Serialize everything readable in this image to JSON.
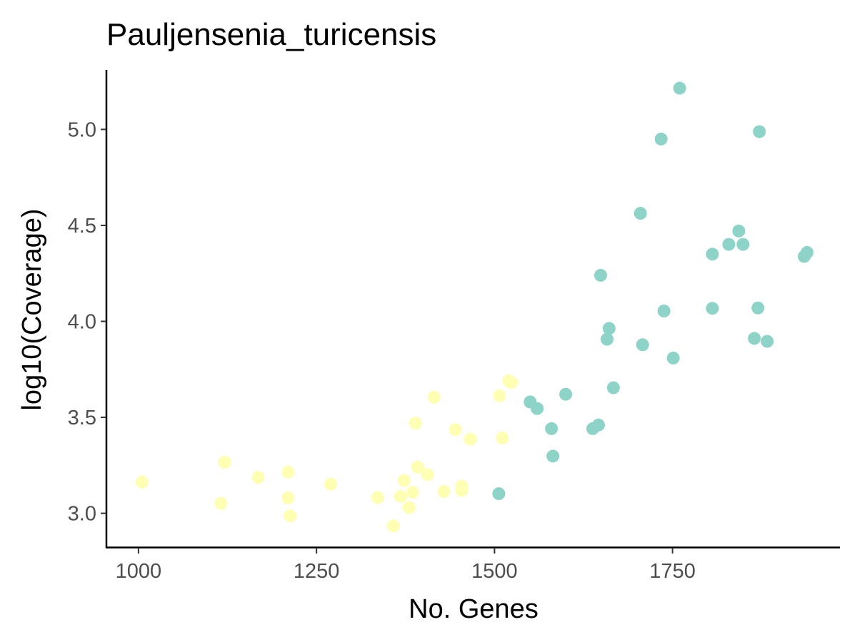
{
  "chart_data": {
    "type": "scatter",
    "title": "Pauljensenia_turicensis",
    "xlabel": "No. Genes",
    "ylabel": "log10(Coverage)",
    "xlim": [
      955,
      1985
    ],
    "ylim": [
      2.82,
      5.31
    ],
    "xticks": [
      1000,
      1250,
      1500,
      1750
    ],
    "xtick_labels": [
      "1000",
      "1250",
      "1500",
      "1750"
    ],
    "yticks": [
      3.0,
      3.5,
      4.0,
      4.5,
      5.0
    ],
    "ytick_labels": [
      "3.0",
      "3.5",
      "4.0",
      "4.5",
      "5.0"
    ],
    "grid": false,
    "legend": "none",
    "colors": {
      "yellow": "#ffffb3",
      "teal": "#8dd3c7"
    },
    "series": [
      {
        "color": "#ffffb3",
        "points": [
          {
            "x": 1005,
            "y": 3.163
          },
          {
            "x": 1116,
            "y": 3.052
          },
          {
            "x": 1121,
            "y": 3.266
          },
          {
            "x": 1168,
            "y": 3.187
          },
          {
            "x": 1210,
            "y": 3.215
          },
          {
            "x": 1210,
            "y": 3.08
          },
          {
            "x": 1213,
            "y": 2.986
          },
          {
            "x": 1270,
            "y": 3.152
          },
          {
            "x": 1336,
            "y": 3.082
          },
          {
            "x": 1358,
            "y": 2.934
          },
          {
            "x": 1368,
            "y": 3.088
          },
          {
            "x": 1373,
            "y": 3.171
          },
          {
            "x": 1380,
            "y": 3.03
          },
          {
            "x": 1385,
            "y": 3.11
          },
          {
            "x": 1389,
            "y": 3.47
          },
          {
            "x": 1392,
            "y": 3.241
          },
          {
            "x": 1406,
            "y": 3.202
          },
          {
            "x": 1415,
            "y": 3.605
          },
          {
            "x": 1429,
            "y": 3.114
          },
          {
            "x": 1445,
            "y": 3.436
          },
          {
            "x": 1454,
            "y": 3.141
          },
          {
            "x": 1454,
            "y": 3.119
          },
          {
            "x": 1466,
            "y": 3.386
          },
          {
            "x": 1507,
            "y": 3.612
          },
          {
            "x": 1511,
            "y": 3.392
          },
          {
            "x": 1520,
            "y": 3.69
          },
          {
            "x": 1524,
            "y": 3.682
          }
        ]
      },
      {
        "color": "#8dd3c7",
        "points": [
          {
            "x": 1506,
            "y": 3.102
          },
          {
            "x": 1550,
            "y": 3.58
          },
          {
            "x": 1560,
            "y": 3.546
          },
          {
            "x": 1580,
            "y": 3.441
          },
          {
            "x": 1582,
            "y": 3.298
          },
          {
            "x": 1600,
            "y": 3.62
          },
          {
            "x": 1638,
            "y": 3.441
          },
          {
            "x": 1646,
            "y": 3.46
          },
          {
            "x": 1649,
            "y": 4.24
          },
          {
            "x": 1658,
            "y": 3.907
          },
          {
            "x": 1661,
            "y": 3.963
          },
          {
            "x": 1667,
            "y": 3.654
          },
          {
            "x": 1705,
            "y": 4.563
          },
          {
            "x": 1708,
            "y": 3.878
          },
          {
            "x": 1734,
            "y": 4.95
          },
          {
            "x": 1738,
            "y": 4.054
          },
          {
            "x": 1751,
            "y": 3.809
          },
          {
            "x": 1760,
            "y": 5.215
          },
          {
            "x": 1806,
            "y": 4.35
          },
          {
            "x": 1806,
            "y": 4.068
          },
          {
            "x": 1829,
            "y": 4.401
          },
          {
            "x": 1843,
            "y": 4.471
          },
          {
            "x": 1849,
            "y": 4.401
          },
          {
            "x": 1865,
            "y": 3.911
          },
          {
            "x": 1870,
            "y": 4.07
          },
          {
            "x": 1872,
            "y": 4.988
          },
          {
            "x": 1883,
            "y": 3.896
          },
          {
            "x": 1935,
            "y": 4.338
          },
          {
            "x": 1939,
            "y": 4.359
          }
        ]
      }
    ]
  }
}
